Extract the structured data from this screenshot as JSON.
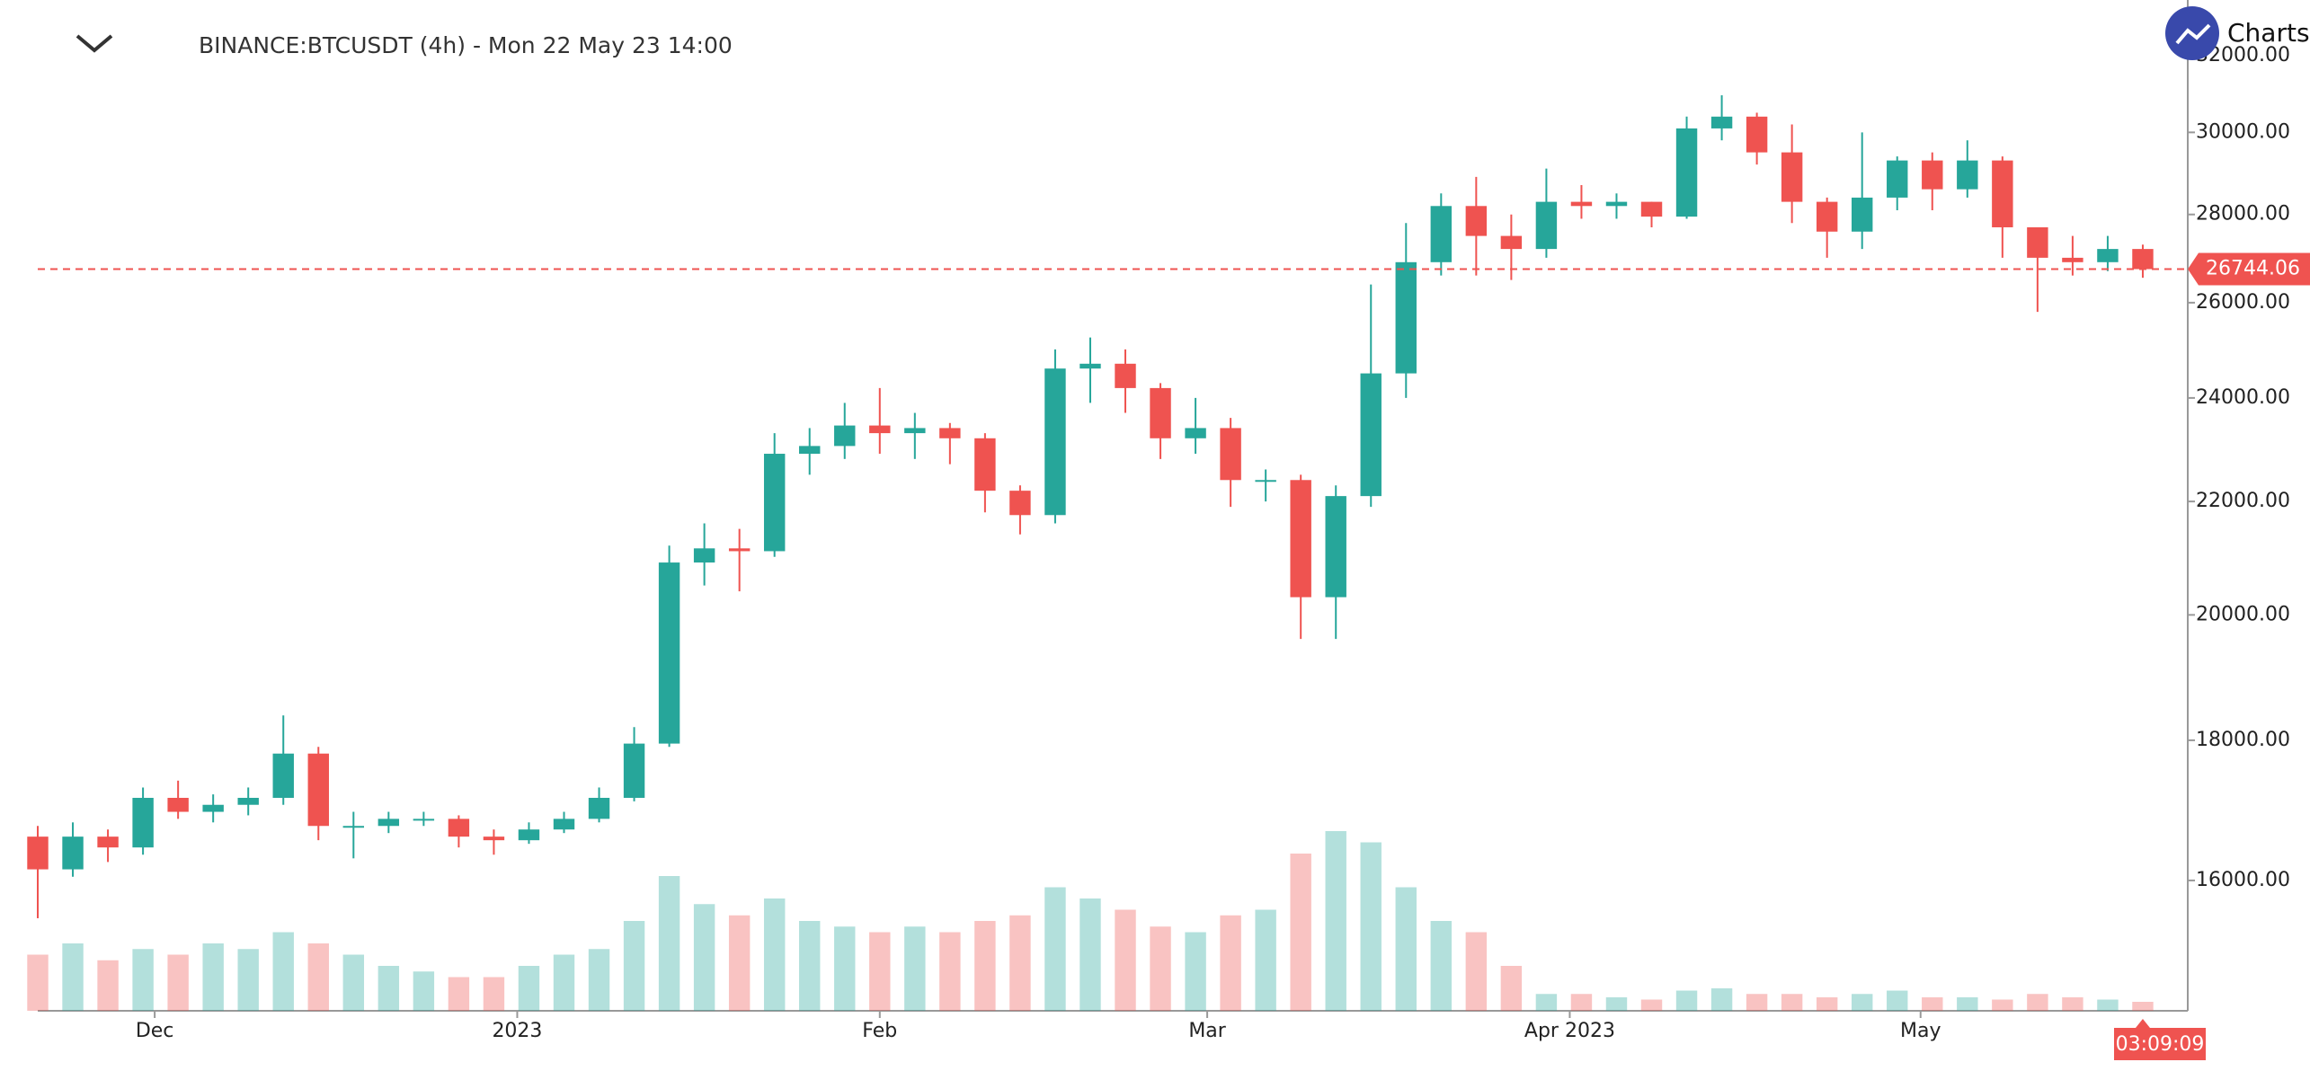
{
  "chart_data": {
    "type": "candlestick",
    "title": "BINANCE:BTCUSDT (4h) - Mon 22 May 23 14:00",
    "brand": "Charts p",
    "countdown": "03:09:09",
    "log_scale": true,
    "up_color": "#26a69a",
    "down_color": "#ef5350",
    "x": [
      0,
      3,
      6,
      9,
      12,
      15,
      18,
      21,
      24,
      27,
      30,
      33,
      36,
      39,
      42,
      45,
      48,
      51,
      54,
      57,
      60,
      63,
      66,
      69,
      72,
      75,
      78,
      81,
      84,
      87,
      90,
      93,
      96,
      99,
      102,
      105,
      108,
      111,
      114,
      117,
      120,
      123,
      126,
      129,
      132,
      135,
      138,
      141,
      144,
      147,
      150,
      153,
      156,
      159,
      162,
      165,
      168,
      171,
      174,
      177,
      180
    ],
    "open": [
      16600,
      16150,
      16600,
      16450,
      17150,
      16950,
      17050,
      17150,
      17800,
      16750,
      16750,
      16850,
      16850,
      16600,
      16550,
      16700,
      16850,
      17150,
      17950,
      20900,
      21150,
      21100,
      22900,
      23050,
      23450,
      23300,
      23400,
      23200,
      22200,
      21750,
      24600,
      24700,
      24200,
      23200,
      23400,
      22400,
      22400,
      20300,
      22100,
      24500,
      26900,
      28200,
      27500,
      27200,
      28300,
      28200,
      28300,
      27950,
      30100,
      30400,
      29500,
      28300,
      27600,
      28400,
      29300,
      28600,
      29300,
      27700,
      27000,
      26900,
      27200
    ],
    "high": [
      16750,
      16800,
      16700,
      17300,
      17400,
      17200,
      17300,
      18380,
      17900,
      16950,
      16950,
      16950,
      16900,
      16700,
      16800,
      16950,
      17300,
      18200,
      21200,
      21600,
      21500,
      23300,
      23400,
      23900,
      24200,
      23700,
      23500,
      23300,
      22300,
      25000,
      25250,
      25000,
      24300,
      24000,
      23600,
      22600,
      22500,
      22300,
      26400,
      27800,
      28500,
      28900,
      28000,
      29100,
      28700,
      28500,
      28300,
      30400,
      30950,
      30500,
      30200,
      28400,
      30000,
      29400,
      29500,
      29800,
      29400,
      27700,
      27500,
      27500,
      27300
    ],
    "low": [
      15500,
      16050,
      16250,
      16350,
      16850,
      16800,
      16900,
      17050,
      16550,
      16300,
      16650,
      16750,
      16450,
      16350,
      16500,
      16650,
      16800,
      17100,
      17900,
      20500,
      20400,
      21000,
      22500,
      22800,
      22900,
      22800,
      22700,
      21800,
      21400,
      21600,
      23900,
      23700,
      22800,
      22900,
      21900,
      22000,
      19600,
      19600,
      21900,
      24000,
      26600,
      26600,
      26500,
      27000,
      27900,
      27900,
      27700,
      27900,
      29800,
      29200,
      27800,
      27000,
      27200,
      28100,
      28100,
      28400,
      27000,
      25800,
      26600,
      26700,
      26550
    ],
    "close": [
      16150,
      16600,
      16450,
      17150,
      16950,
      17050,
      17150,
      17800,
      16750,
      16750,
      16850,
      16850,
      16600,
      16550,
      16700,
      16850,
      17150,
      17950,
      20900,
      21150,
      21100,
      22900,
      23050,
      23450,
      23300,
      23400,
      23200,
      22200,
      21750,
      24600,
      24700,
      24200,
      23200,
      23400,
      22400,
      22400,
      20300,
      22100,
      24500,
      26900,
      28200,
      27500,
      27200,
      28300,
      28200,
      28300,
      27950,
      30100,
      30400,
      29500,
      28300,
      27600,
      28400,
      29300,
      28600,
      29300,
      27700,
      27000,
      26900,
      27200,
      26744.06
    ],
    "volume": [
      50,
      60,
      45,
      55,
      50,
      60,
      55,
      70,
      60,
      50,
      40,
      35,
      30,
      30,
      40,
      50,
      55,
      80,
      120,
      95,
      85,
      100,
      80,
      75,
      70,
      75,
      70,
      80,
      85,
      110,
      100,
      90,
      75,
      70,
      85,
      90,
      140,
      160,
      150,
      110,
      80,
      70,
      40,
      15,
      15,
      12,
      10,
      18,
      20,
      15,
      15,
      12,
      15,
      18,
      12,
      12,
      10,
      15,
      12,
      10,
      8
    ],
    "xlim": [
      0,
      183
    ],
    "ylim": [
      14340,
      33530
    ],
    "xticks": [
      {
        "value": 10,
        "label": "Dec"
      },
      {
        "value": 41,
        "label": "2023"
      },
      {
        "value": 72,
        "label": "Feb"
      },
      {
        "value": 100,
        "label": "Mar"
      },
      {
        "value": 131,
        "label": "Apr 2023"
      },
      {
        "value": 161,
        "label": "May"
      }
    ],
    "yticks": [
      {
        "value": 16000,
        "label": "16000.00"
      },
      {
        "value": 18000,
        "label": "18000.00"
      },
      {
        "value": 20000,
        "label": "20000.00"
      },
      {
        "value": 22000,
        "label": "22000.00"
      },
      {
        "value": 24000,
        "label": "24000.00"
      },
      {
        "value": 26000,
        "label": "26000.00"
      },
      {
        "value": 28000,
        "label": "28000.00"
      },
      {
        "value": 30000,
        "label": "30000.00"
      },
      {
        "value": 32000,
        "label": "32000.00"
      }
    ]
  }
}
